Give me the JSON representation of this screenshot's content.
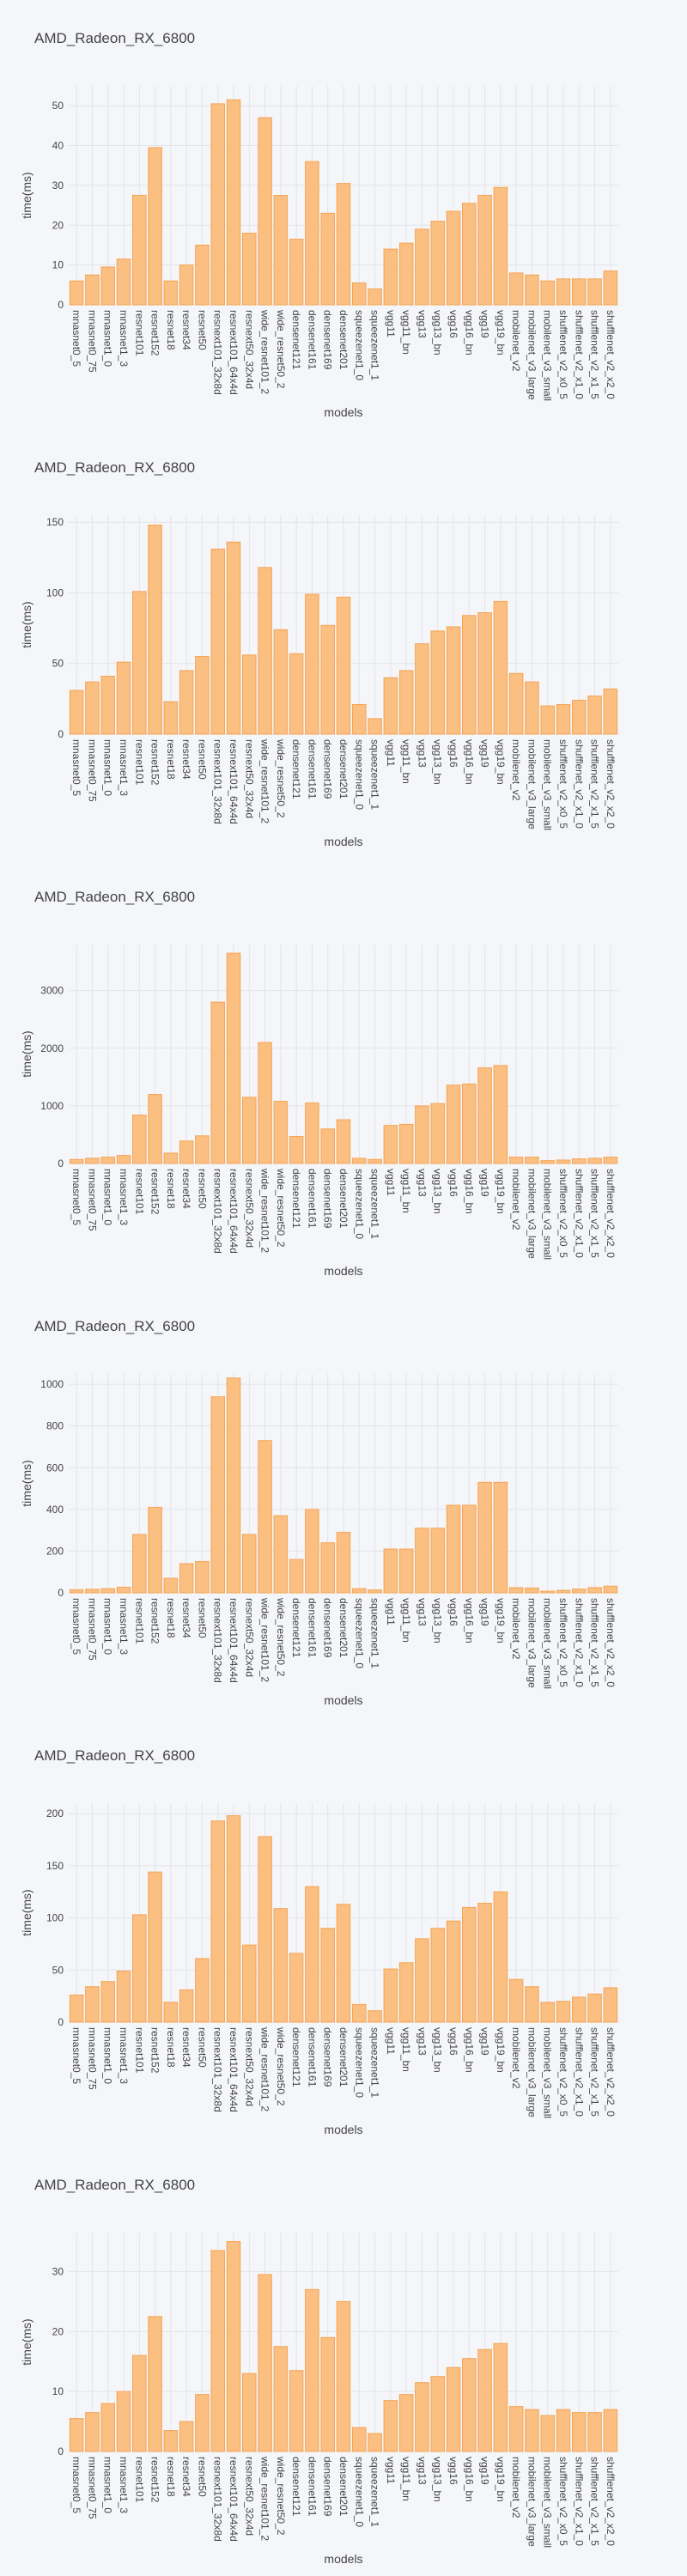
{
  "theme": {
    "background": "#f5f6fa",
    "plot_background": "#f5f6fa",
    "grid_color": "#e2e4ea",
    "bar_fill": "#fbbf82",
    "bar_stroke": "#f5a455",
    "text_color": "#444444"
  },
  "chart_data": [
    {
      "type": "bar",
      "title": "AMD_Radeon_RX_6800",
      "xlabel": "models",
      "ylabel": "time(ms)",
      "grid": true,
      "ylim": [
        0,
        55
      ],
      "yticks": [
        0,
        10,
        20,
        30,
        40,
        50
      ],
      "categories": [
        "mnasnet0_5",
        "mnasnet0_75",
        "mnasnet1_0",
        "mnasnet1_3",
        "resnet101",
        "resnet152",
        "resnet18",
        "resnet34",
        "resnet50",
        "resnext101_32x8d",
        "resnext101_64x4d",
        "resnext50_32x4d",
        "wide_resnet101_2",
        "wide_resnet50_2",
        "densenet121",
        "densenet161",
        "densenet169",
        "densenet201",
        "squeezenet1_0",
        "squeezenet1_1",
        "vgg11",
        "vgg11_bn",
        "vgg13",
        "vgg13_bn",
        "vgg16",
        "vgg16_bn",
        "vgg19",
        "vgg19_bn",
        "mobilenet_v2",
        "mobilenet_v3_large",
        "mobilenet_v3_small",
        "shufflenet_v2_x0_5",
        "shufflenet_v2_x1_0",
        "shufflenet_v2_x1_5",
        "shufflenet_v2_x2_0"
      ],
      "values": [
        6,
        7.5,
        9.5,
        11.5,
        27.5,
        39.5,
        6,
        10,
        15,
        50.5,
        51.5,
        18,
        47,
        27.5,
        16.5,
        36,
        23,
        30.5,
        5.5,
        4,
        14,
        15.5,
        19,
        21,
        23.5,
        25.5,
        27.5,
        29.5,
        8,
        7.5,
        6,
        6.5,
        6.5,
        6.5,
        8.5
      ]
    },
    {
      "type": "bar",
      "title": "AMD_Radeon_RX_6800",
      "xlabel": "models",
      "ylabel": "time(ms)",
      "grid": true,
      "ylim": [
        0,
        155
      ],
      "yticks": [
        0,
        50,
        100,
        150
      ],
      "categories": [
        "mnasnet0_5",
        "mnasnet0_75",
        "mnasnet1_0",
        "mnasnet1_3",
        "resnet101",
        "resnet152",
        "resnet18",
        "resnet34",
        "resnet50",
        "resnext101_32x8d",
        "resnext101_64x4d",
        "resnext50_32x4d",
        "wide_resnet101_2",
        "wide_resnet50_2",
        "densenet121",
        "densenet161",
        "densenet169",
        "densenet201",
        "squeezenet1_0",
        "squeezenet1_1",
        "vgg11",
        "vgg11_bn",
        "vgg13",
        "vgg13_bn",
        "vgg16",
        "vgg16_bn",
        "vgg19",
        "vgg19_bn",
        "mobilenet_v2",
        "mobilenet_v3_large",
        "mobilenet_v3_small",
        "shufflenet_v2_x0_5",
        "shufflenet_v2_x1_0",
        "shufflenet_v2_x1_5",
        "shufflenet_v2_x2_0"
      ],
      "values": [
        31,
        37,
        41,
        51,
        101,
        148,
        23,
        45,
        55,
        131,
        136,
        56,
        118,
        74,
        57,
        99,
        77,
        97,
        21,
        11,
        40,
        45,
        64,
        73,
        76,
        84,
        86,
        94,
        43,
        37,
        20,
        21,
        24,
        27,
        32
      ]
    },
    {
      "type": "bar",
      "title": "AMD_Radeon_RX_6800",
      "xlabel": "models",
      "ylabel": "time(ms)",
      "grid": true,
      "ylim": [
        0,
        3800
      ],
      "yticks": [
        0,
        1000,
        2000,
        3000
      ],
      "categories": [
        "mnasnet0_5",
        "mnasnet0_75",
        "mnasnet1_0",
        "mnasnet1_3",
        "resnet101",
        "resnet152",
        "resnet18",
        "resnet34",
        "resnet50",
        "resnext101_32x8d",
        "resnext101_64x4d",
        "resnext50_32x4d",
        "wide_resnet101_2",
        "wide_resnet50_2",
        "densenet121",
        "densenet161",
        "densenet169",
        "densenet201",
        "squeezenet1_0",
        "squeezenet1_1",
        "vgg11",
        "vgg11_bn",
        "vgg13",
        "vgg13_bn",
        "vgg16",
        "vgg16_bn",
        "vgg19",
        "vgg19_bn",
        "mobilenet_v2",
        "mobilenet_v3_large",
        "mobilenet_v3_small",
        "shufflenet_v2_x0_5",
        "shufflenet_v2_x1_0",
        "shufflenet_v2_x1_5",
        "shufflenet_v2_x2_0"
      ],
      "values": [
        70,
        90,
        110,
        140,
        840,
        1200,
        180,
        390,
        480,
        2800,
        3650,
        1150,
        2100,
        1080,
        470,
        1050,
        600,
        760,
        90,
        70,
        660,
        680,
        1000,
        1040,
        1360,
        1380,
        1660,
        1700,
        110,
        110,
        50,
        60,
        80,
        90,
        110
      ]
    },
    {
      "type": "bar",
      "title": "AMD_Radeon_RX_6800",
      "xlabel": "models",
      "ylabel": "time(ms)",
      "grid": true,
      "ylim": [
        0,
        1050
      ],
      "yticks": [
        0,
        200,
        400,
        600,
        800,
        1000
      ],
      "categories": [
        "mnasnet0_5",
        "mnasnet0_75",
        "mnasnet1_0",
        "mnasnet1_3",
        "resnet101",
        "resnet152",
        "resnet18",
        "resnet34",
        "resnet50",
        "resnext101_32x8d",
        "resnext101_64x4d",
        "resnext50_32x4d",
        "wide_resnet101_2",
        "wide_resnet50_2",
        "densenet121",
        "densenet161",
        "densenet169",
        "densenet201",
        "squeezenet1_0",
        "squeezenet1_1",
        "vgg11",
        "vgg11_bn",
        "vgg13",
        "vgg13_bn",
        "vgg16",
        "vgg16_bn",
        "vgg19",
        "vgg19_bn",
        "mobilenet_v2",
        "mobilenet_v3_large",
        "mobilenet_v3_small",
        "shufflenet_v2_x0_5",
        "shufflenet_v2_x1_0",
        "shufflenet_v2_x1_5",
        "shufflenet_v2_x2_0"
      ],
      "values": [
        15,
        17,
        20,
        27,
        280,
        410,
        70,
        140,
        150,
        940,
        1030,
        280,
        730,
        370,
        160,
        400,
        240,
        290,
        20,
        14,
        210,
        210,
        310,
        310,
        420,
        420,
        530,
        530,
        25,
        23,
        8,
        12,
        18,
        25,
        32
      ]
    },
    {
      "type": "bar",
      "title": "AMD_Radeon_RX_6800",
      "xlabel": "models",
      "ylabel": "time(ms)",
      "grid": true,
      "ylim": [
        0,
        210
      ],
      "yticks": [
        0,
        50,
        100,
        150,
        200
      ],
      "categories": [
        "mnasnet0_5",
        "mnasnet0_75",
        "mnasnet1_0",
        "mnasnet1_3",
        "resnet101",
        "resnet152",
        "resnet18",
        "resnet34",
        "resnet50",
        "resnext101_32x8d",
        "resnext101_64x4d",
        "resnext50_32x4d",
        "wide_resnet101_2",
        "wide_resnet50_2",
        "densenet121",
        "densenet161",
        "densenet169",
        "densenet201",
        "squeezenet1_0",
        "squeezenet1_1",
        "vgg11",
        "vgg11_bn",
        "vgg13",
        "vgg13_bn",
        "vgg16",
        "vgg16_bn",
        "vgg19",
        "vgg19_bn",
        "mobilenet_v2",
        "mobilenet_v3_large",
        "mobilenet_v3_small",
        "shufflenet_v2_x0_5",
        "shufflenet_v2_x1_0",
        "shufflenet_v2_x1_5",
        "shufflenet_v2_x2_0"
      ],
      "values": [
        26,
        34,
        39,
        49,
        103,
        144,
        19,
        31,
        61,
        193,
        198,
        74,
        178,
        109,
        66,
        130,
        90,
        113,
        17,
        11,
        51,
        57,
        80,
        90,
        97,
        110,
        114,
        125,
        41,
        34,
        19,
        20,
        24,
        27,
        33
      ]
    },
    {
      "type": "bar",
      "title": "AMD_Radeon_RX_6800",
      "xlabel": "models",
      "ylabel": "time(ms)",
      "grid": true,
      "ylim": [
        0,
        36.5
      ],
      "yticks": [
        0,
        10,
        20,
        30
      ],
      "categories": [
        "mnasnet0_5",
        "mnasnet0_75",
        "mnasnet1_0",
        "mnasnet1_3",
        "resnet101",
        "resnet152",
        "resnet18",
        "resnet34",
        "resnet50",
        "resnext101_32x8d",
        "resnext101_64x4d",
        "resnext50_32x4d",
        "wide_resnet101_2",
        "wide_resnet50_2",
        "densenet121",
        "densenet161",
        "densenet169",
        "densenet201",
        "squeezenet1_0",
        "squeezenet1_1",
        "vgg11",
        "vgg11_bn",
        "vgg13",
        "vgg13_bn",
        "vgg16",
        "vgg16_bn",
        "vgg19",
        "vgg19_bn",
        "mobilenet_v2",
        "mobilenet_v3_large",
        "mobilenet_v3_small",
        "shufflenet_v2_x0_5",
        "shufflenet_v2_x1_0",
        "shufflenet_v2_x1_5",
        "shufflenet_v2_x2_0"
      ],
      "values": [
        5.5,
        6.5,
        8,
        10,
        16,
        22.5,
        3.5,
        5,
        9.5,
        33.5,
        35,
        13,
        29.5,
        17.5,
        13.5,
        27,
        19,
        25,
        4,
        3,
        8.5,
        9.5,
        11.5,
        12.5,
        14,
        15.5,
        17,
        18,
        7.5,
        7,
        6,
        7,
        6.5,
        6.5,
        7
      ]
    }
  ]
}
